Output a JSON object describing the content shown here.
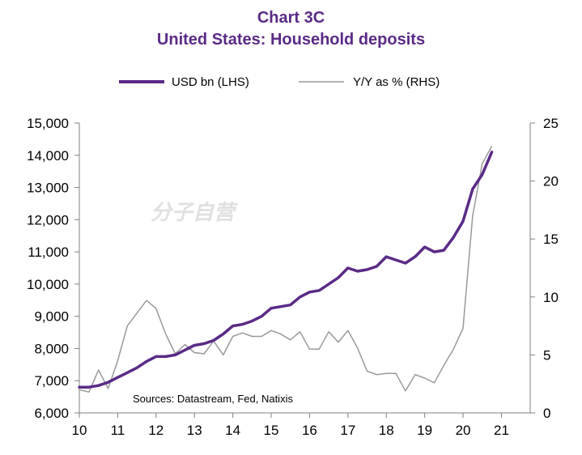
{
  "chart_data": {
    "type": "line",
    "title": "Chart 3C",
    "subtitle": "United States: Household deposits",
    "source_note": "Sources:  Datastream,  Fed, Natixis",
    "watermark_text": "分子自营",
    "x_ticks": [
      "10",
      "11",
      "12",
      "13",
      "14",
      "15",
      "16",
      "17",
      "18",
      "19",
      "20",
      "21"
    ],
    "x_range": [
      2010,
      2021.75
    ],
    "y_left": {
      "min": 6000,
      "max": 15000,
      "ticks": [
        "6,000",
        "7,000",
        "8,000",
        "9,000",
        "10,000",
        "11,000",
        "12,000",
        "13,000",
        "14,000",
        "15,000"
      ]
    },
    "y_right": {
      "min": 0,
      "max": 25,
      "ticks": [
        "0",
        "5",
        "10",
        "15",
        "20",
        "25"
      ]
    },
    "legend_position": "top",
    "series": [
      {
        "name": "USD bn (LHS)",
        "axis": "left",
        "color": "#5b2a86",
        "x": [
          2010,
          2010.25,
          2010.5,
          2010.75,
          2011,
          2011.25,
          2011.5,
          2011.75,
          2012,
          2012.25,
          2012.5,
          2012.75,
          2013,
          2013.25,
          2013.5,
          2013.75,
          2014,
          2014.25,
          2014.5,
          2014.75,
          2015,
          2015.25,
          2015.5,
          2015.75,
          2016,
          2016.25,
          2016.5,
          2016.75,
          2017,
          2017.25,
          2017.5,
          2017.75,
          2018,
          2018.25,
          2018.5,
          2018.75,
          2019,
          2019.25,
          2019.5,
          2019.75,
          2020,
          2020.25,
          2020.5,
          2020.75
        ],
        "values": [
          6800,
          6800,
          6850,
          6950,
          7100,
          7250,
          7400,
          7600,
          7750,
          7750,
          7800,
          7950,
          8100,
          8150,
          8250,
          8450,
          8700,
          8750,
          8850,
          9000,
          9250,
          9300,
          9350,
          9600,
          9750,
          9800,
          10000,
          10200,
          10500,
          10400,
          10450,
          10550,
          10850,
          10750,
          10650,
          10850,
          11150,
          11000,
          11050,
          11450,
          11950,
          12950,
          13400,
          14100
        ]
      },
      {
        "name": "Y/Y as % (RHS)",
        "axis": "right",
        "color": "#999999",
        "x": [
          2010,
          2010.25,
          2010.5,
          2010.75,
          2011,
          2011.25,
          2011.5,
          2011.75,
          2012,
          2012.25,
          2012.5,
          2012.75,
          2013,
          2013.25,
          2013.5,
          2013.75,
          2014,
          2014.25,
          2014.5,
          2014.75,
          2015,
          2015.25,
          2015.5,
          2015.75,
          2016,
          2016.25,
          2016.5,
          2016.75,
          2017,
          2017.25,
          2017.5,
          2017.75,
          2018,
          2018.25,
          2018.5,
          2018.75,
          2019,
          2019.25,
          2019.5,
          2019.75,
          2020,
          2020.25,
          2020.5,
          2020.75
        ],
        "values": [
          2.0,
          1.8,
          3.7,
          2.1,
          4.5,
          7.5,
          8.6,
          9.7,
          9.0,
          6.8,
          5.1,
          5.9,
          5.2,
          5.1,
          6.2,
          5.0,
          6.6,
          6.9,
          6.6,
          6.6,
          7.1,
          6.8,
          6.3,
          7.0,
          5.5,
          5.5,
          7.0,
          6.1,
          7.1,
          5.6,
          3.6,
          3.3,
          3.4,
          3.4,
          1.9,
          3.3,
          3.0,
          2.6,
          4.1,
          5.5,
          7.3,
          17.0,
          21.5,
          23.0
        ]
      }
    ]
  }
}
